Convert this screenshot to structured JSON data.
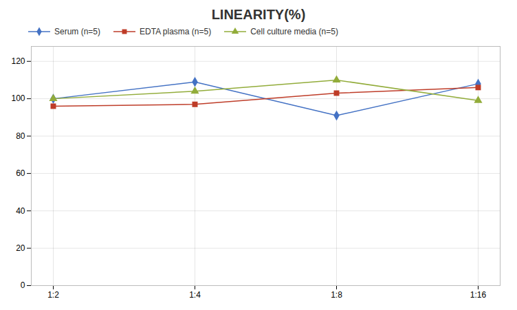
{
  "chart_data": {
    "type": "line",
    "title": "LINEARITY(%)",
    "categories": [
      "1:2",
      "1:4",
      "1:8",
      "1:16"
    ],
    "series": [
      {
        "name": "Serum (n=5)",
        "color": "#4472C4",
        "values": [
          100,
          109,
          91,
          108
        ],
        "marker": "diamond",
        "line_style": "solid"
      },
      {
        "name": "EDTA plasma (n=5)",
        "color": "#BE3C28",
        "values": [
          96,
          97,
          103,
          106
        ],
        "marker": "square",
        "line_style": "solid"
      },
      {
        "name": "Cell culture media (n=5)",
        "color": "#92AC3A",
        "values": [
          100,
          104,
          110,
          99
        ],
        "marker": "triangle",
        "line_style": "solid"
      }
    ],
    "ylim": [
      0,
      128
    ],
    "yticks": [
      0,
      20,
      40,
      60,
      80,
      100,
      120
    ],
    "grid": true,
    "legend": "top"
  }
}
